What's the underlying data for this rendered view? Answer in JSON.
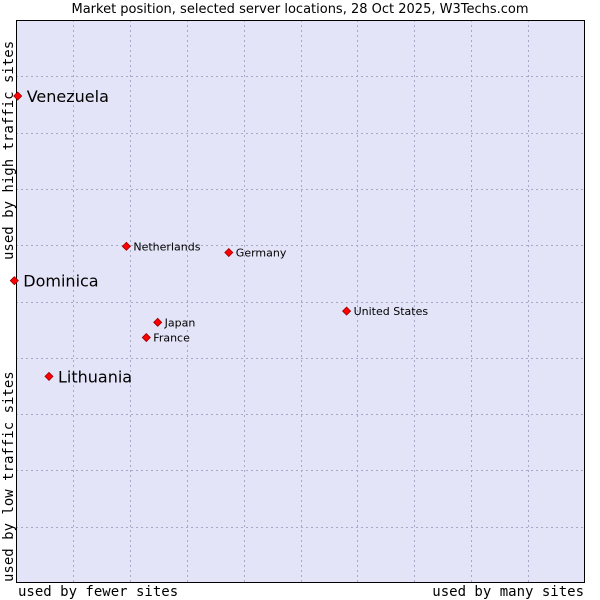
{
  "chart_data": {
    "type": "scatter",
    "title": "Market position, selected server locations, 28 Oct 2025, W3Techs.com",
    "xlabel_left": "used by fewer sites",
    "xlabel_right": "used by many sites",
    "ylabel_top": "used by high traffic sites",
    "ylabel_bottom": "used by low traffic sites",
    "xlim": [
      0,
      100
    ],
    "ylim": [
      0,
      100
    ],
    "grid": true,
    "colors": {
      "plot_background": "#e4e4f8",
      "grid": "#a8a8c8",
      "border": "#000000",
      "marker": "#ff0000",
      "marker_edge": "#990000"
    },
    "points": [
      {
        "label": "Venezuela",
        "x": 0.3,
        "y": 86.5,
        "emphasis": true
      },
      {
        "label": "Dominica",
        "x": -0.3,
        "y": 53.7,
        "emphasis": true
      },
      {
        "label": "Lithuania",
        "x": 5.8,
        "y": 36.7,
        "emphasis": true
      },
      {
        "label": "Netherlands",
        "x": 19.4,
        "y": 59.8,
        "emphasis": false
      },
      {
        "label": "Germany",
        "x": 37.4,
        "y": 58.7,
        "emphasis": false
      },
      {
        "label": "United States",
        "x": 58.1,
        "y": 48.3,
        "emphasis": false
      },
      {
        "label": "Japan",
        "x": 24.9,
        "y": 46.3,
        "emphasis": false
      },
      {
        "label": "France",
        "x": 22.9,
        "y": 43.6,
        "emphasis": false
      }
    ]
  }
}
